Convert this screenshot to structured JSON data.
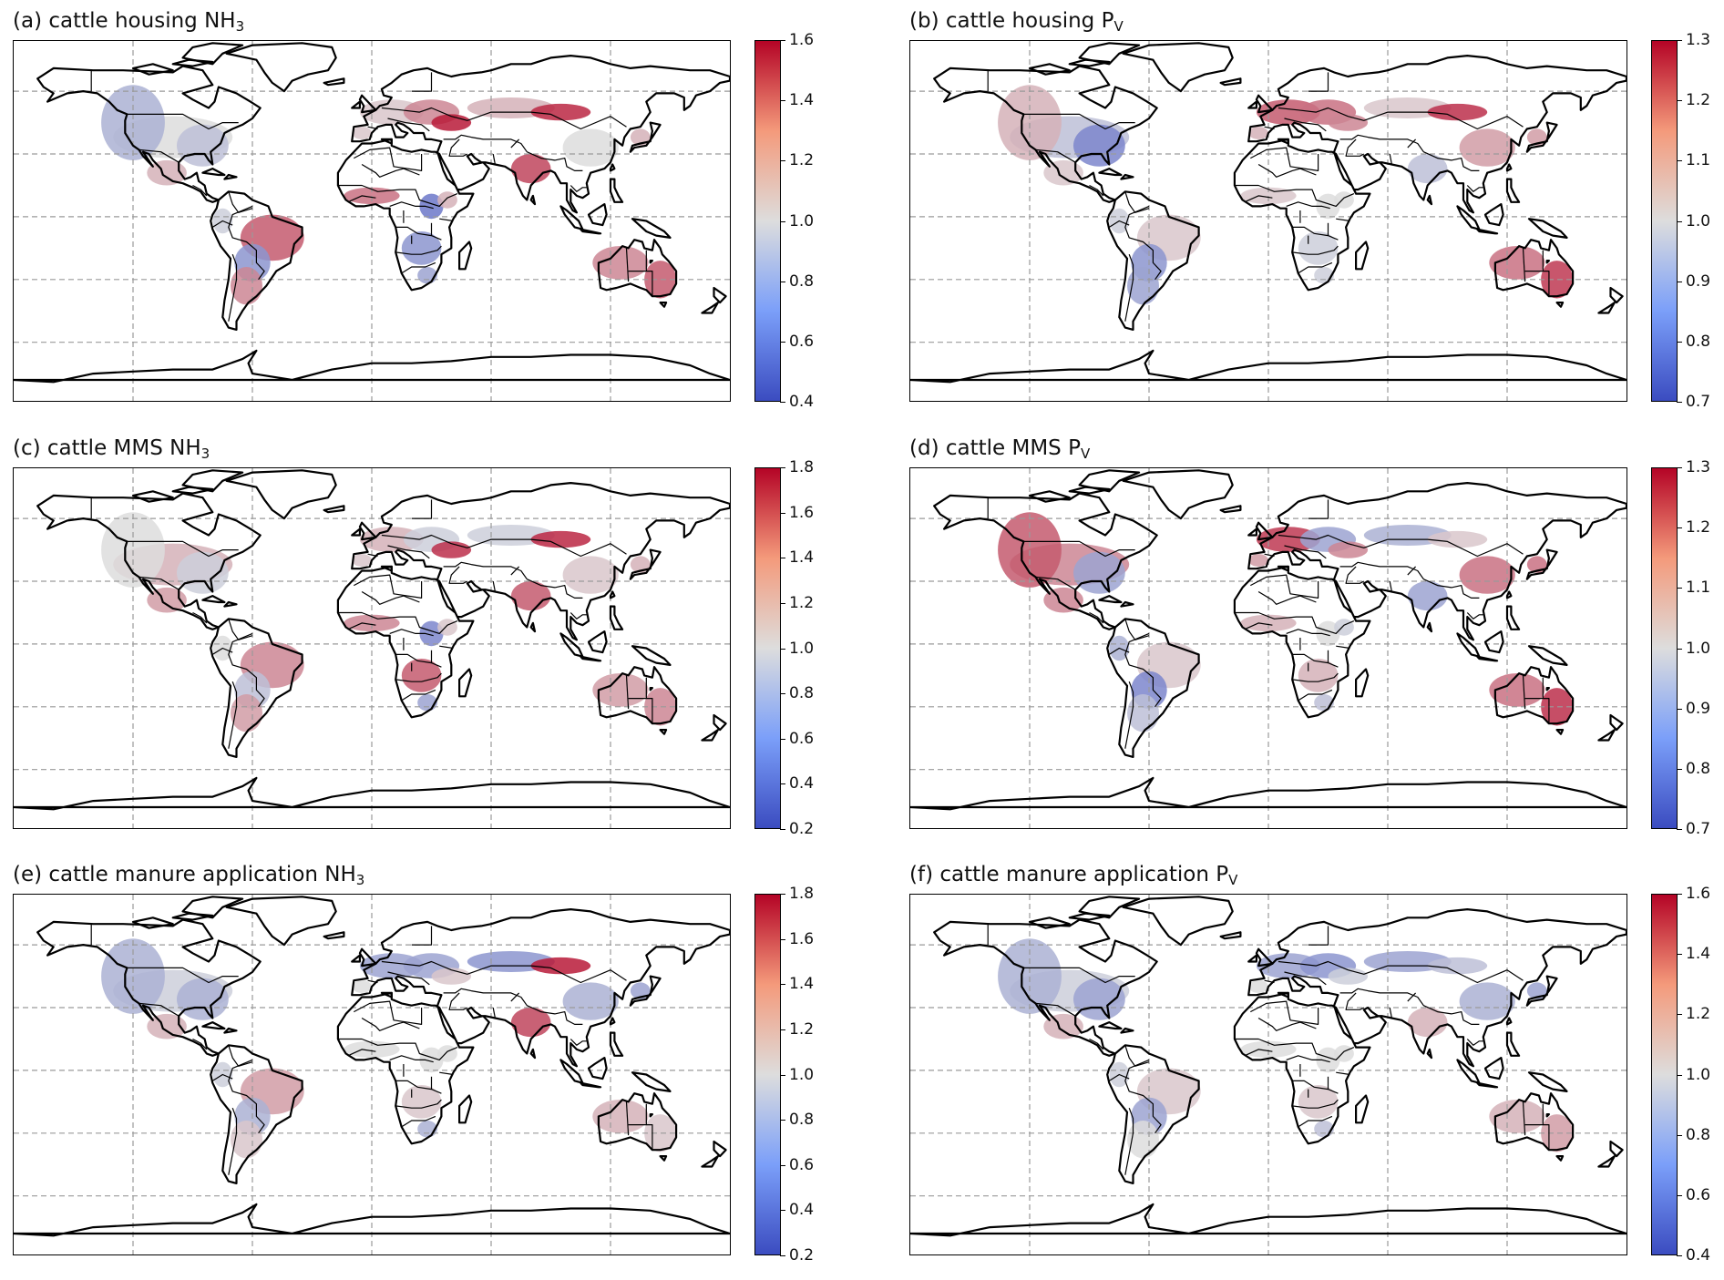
{
  "panels": [
    {
      "title": "(a) cattle housing NH",
      "sub": "3",
      "ticks": [
        "1.6",
        "1.4",
        "1.2",
        "1.0",
        "0.8",
        "0.6",
        "0.4"
      ]
    },
    {
      "title": "(b) cattle housing P",
      "sub": "V",
      "ticks": [
        "1.3",
        "1.2",
        "1.1",
        "1.0",
        "0.9",
        "0.8",
        "0.7"
      ]
    },
    {
      "title": "(c) cattle MMS NH",
      "sub": "3",
      "ticks": [
        "1.8",
        "1.6",
        "1.4",
        "1.2",
        "1.0",
        "0.8",
        "0.6",
        "0.4",
        "0.2"
      ]
    },
    {
      "title": "(d) cattle MMS P",
      "sub": "V",
      "ticks": [
        "1.3",
        "1.2",
        "1.1",
        "1.0",
        "0.9",
        "0.8",
        "0.7"
      ]
    },
    {
      "title": "(e) cattle manure application NH",
      "sub": "3",
      "ticks": [
        "1.8",
        "1.6",
        "1.4",
        "1.2",
        "1.0",
        "0.8",
        "0.6",
        "0.4",
        "0.2"
      ]
    },
    {
      "title": "(f) cattle manure application P",
      "sub": "V",
      "ticks": [
        "1.6",
        "1.4",
        "1.2",
        "1.0",
        "0.8",
        "0.6",
        "0.4"
      ]
    }
  ],
  "colors": {
    "low": "#3b4cc0",
    "mid": "#dddddd",
    "high": "#b40426",
    "gridline": "#9a9a9a",
    "coast": "#000000"
  },
  "colormap": "coolwarm",
  "grid": true
}
